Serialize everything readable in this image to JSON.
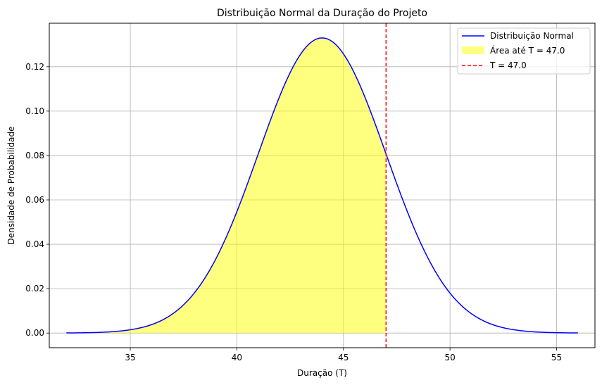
{
  "chart_data": {
    "type": "line",
    "title": "Distribuição Normal da Duração do Projeto",
    "xlabel": "Duração (T)",
    "ylabel": "Densidade de Probabilidade",
    "xlim": [
      31.2,
      56.8
    ],
    "ylim": [
      -0.0066,
      0.1396
    ],
    "x_ticks": [
      35,
      40,
      45,
      50,
      55
    ],
    "y_ticks": [
      0.0,
      0.02,
      0.04,
      0.06,
      0.08,
      0.1,
      0.12
    ],
    "x_tick_labels": [
      "35",
      "40",
      "45",
      "50",
      "55"
    ],
    "y_tick_labels": [
      "0.00",
      "0.02",
      "0.04",
      "0.06",
      "0.08",
      "0.10",
      "0.12"
    ],
    "grid": true,
    "legend_position": "top-right",
    "distribution": {
      "mean": 44,
      "std": 3,
      "x_min": 32,
      "x_max": 56
    },
    "series": [
      {
        "name": "Distribuição Normal",
        "kind": "line",
        "color": "#0000ff"
      },
      {
        "name": "Área até T = 47.0",
        "kind": "fill",
        "color": "#ffff00",
        "alpha": 0.5,
        "x_to": 47.0
      },
      {
        "name": "T = 47.0",
        "kind": "vline",
        "color": "#ff0000",
        "x": 47.0,
        "style": "dashed"
      }
    ]
  }
}
